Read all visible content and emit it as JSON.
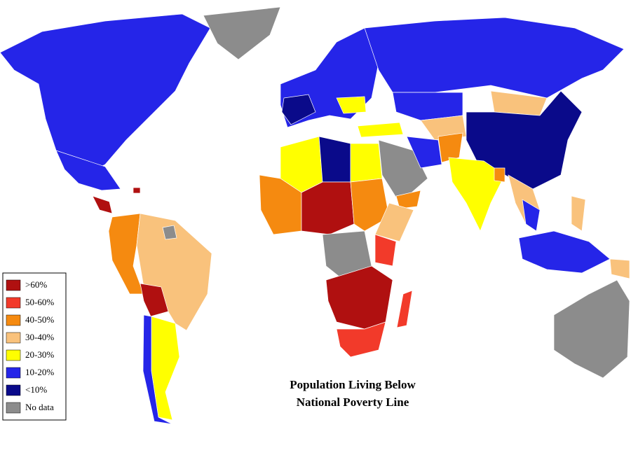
{
  "title": [
    "Population Living Below",
    "National Poverty Line"
  ],
  "legend": [
    {
      "label": ">60%",
      "color": "#b01010"
    },
    {
      "label": "50-60%",
      "color": "#f23a2a"
    },
    {
      "label": "40-50%",
      "color": "#f58a10"
    },
    {
      "label": "30-40%",
      "color": "#f9c27c"
    },
    {
      "label": "20-30%",
      "color": "#ffff00"
    },
    {
      "label": "10-20%",
      "color": "#2525e8"
    },
    {
      "label": "<10%",
      "color": "#0a0a8a"
    },
    {
      "label": "No data",
      "color": "#8c8c8c"
    }
  ]
}
